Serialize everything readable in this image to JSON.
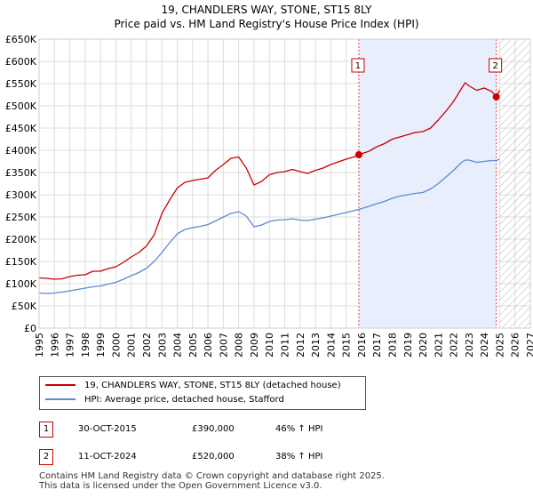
{
  "title_line1": "19, CHANDLERS WAY, STONE, ST15 8LY",
  "title_line2": "Price paid vs. HM Land Registry's House Price Index (HPI)",
  "chart_data": {
    "type": "line",
    "title": "19, CHANDLERS WAY, STONE, ST15 8LY — Price paid vs. HM Land Registry's House Price Index (HPI)",
    "xlim": [
      1995,
      2027
    ],
    "ylim": [
      0,
      650000
    ],
    "x_ticks": [
      "1995",
      "1996",
      "1997",
      "1998",
      "1999",
      "2000",
      "2001",
      "2002",
      "2003",
      "2004",
      "2005",
      "2006",
      "2007",
      "2008",
      "2009",
      "2010",
      "2011",
      "2012",
      "2013",
      "2014",
      "2015",
      "2016",
      "2017",
      "2018",
      "2019",
      "2020",
      "2021",
      "2022",
      "2023",
      "2024",
      "2025",
      "2026",
      "2027"
    ],
    "y_ticks": [
      {
        "value": 0,
        "label": "£0"
      },
      {
        "value": 50000,
        "label": "£50K"
      },
      {
        "value": 100000,
        "label": "£100K"
      },
      {
        "value": 150000,
        "label": "£150K"
      },
      {
        "value": 200000,
        "label": "£200K"
      },
      {
        "value": 250000,
        "label": "£250K"
      },
      {
        "value": 300000,
        "label": "£300K"
      },
      {
        "value": 350000,
        "label": "£350K"
      },
      {
        "value": 400000,
        "label": "£400K"
      },
      {
        "value": 450000,
        "label": "£450K"
      },
      {
        "value": 500000,
        "label": "£500K"
      },
      {
        "value": 550000,
        "label": "£550K"
      },
      {
        "value": 600000,
        "label": "£600K"
      },
      {
        "value": 650000,
        "label": "£650K"
      }
    ],
    "shaded_period": {
      "from": 2015.83,
      "to": 2024.78
    },
    "forecast_hatch_from": 2025.0,
    "series": [
      {
        "name": "19, CHANDLERS WAY, STONE, ST15 8LY (detached house)",
        "color": "#cc0000",
        "points": [
          [
            1995.0,
            113000
          ],
          [
            1995.5,
            112000
          ],
          [
            1996.0,
            110000
          ],
          [
            1996.5,
            111000
          ],
          [
            1997.0,
            116000
          ],
          [
            1997.5,
            119000
          ],
          [
            1998.0,
            120000
          ],
          [
            1998.5,
            128000
          ],
          [
            1999.0,
            128000
          ],
          [
            1999.5,
            134000
          ],
          [
            2000.0,
            138000
          ],
          [
            2000.5,
            148000
          ],
          [
            2001.0,
            160000
          ],
          [
            2001.5,
            170000
          ],
          [
            2002.0,
            185000
          ],
          [
            2002.5,
            210000
          ],
          [
            2003.0,
            258000
          ],
          [
            2003.5,
            288000
          ],
          [
            2004.0,
            315000
          ],
          [
            2004.5,
            328000
          ],
          [
            2005.0,
            332000
          ],
          [
            2005.5,
            335000
          ],
          [
            2006.0,
            338000
          ],
          [
            2006.5,
            355000
          ],
          [
            2007.0,
            368000
          ],
          [
            2007.5,
            382000
          ],
          [
            2008.0,
            385000
          ],
          [
            2008.5,
            360000
          ],
          [
            2009.0,
            322000
          ],
          [
            2009.5,
            330000
          ],
          [
            2010.0,
            345000
          ],
          [
            2010.5,
            350000
          ],
          [
            2011.0,
            352000
          ],
          [
            2011.5,
            357000
          ],
          [
            2012.0,
            352000
          ],
          [
            2012.5,
            348000
          ],
          [
            2013.0,
            355000
          ],
          [
            2013.5,
            360000
          ],
          [
            2014.0,
            368000
          ],
          [
            2014.5,
            374000
          ],
          [
            2015.0,
            380000
          ],
          [
            2015.5,
            385000
          ],
          [
            2015.83,
            390000
          ],
          [
            2016.5,
            398000
          ],
          [
            2017.0,
            408000
          ],
          [
            2017.5,
            415000
          ],
          [
            2018.0,
            425000
          ],
          [
            2018.5,
            430000
          ],
          [
            2019.0,
            435000
          ],
          [
            2019.5,
            440000
          ],
          [
            2020.0,
            442000
          ],
          [
            2020.5,
            450000
          ],
          [
            2021.0,
            468000
          ],
          [
            2021.5,
            488000
          ],
          [
            2022.0,
            510000
          ],
          [
            2022.5,
            538000
          ],
          [
            2022.75,
            552000
          ],
          [
            2023.0,
            545000
          ],
          [
            2023.5,
            535000
          ],
          [
            2024.0,
            540000
          ],
          [
            2024.5,
            532000
          ],
          [
            2024.78,
            520000
          ],
          [
            2025.0,
            535000
          ]
        ]
      },
      {
        "name": "HPI: Average price, detached house, Stafford",
        "color": "#5b8bd0",
        "points": [
          [
            1995.0,
            79000
          ],
          [
            1995.5,
            78000
          ],
          [
            1996.0,
            79000
          ],
          [
            1996.5,
            81000
          ],
          [
            1997.0,
            84000
          ],
          [
            1997.5,
            87000
          ],
          [
            1998.0,
            90000
          ],
          [
            1998.5,
            93000
          ],
          [
            1999.0,
            95000
          ],
          [
            1999.5,
            99000
          ],
          [
            2000.0,
            103000
          ],
          [
            2000.5,
            110000
          ],
          [
            2001.0,
            118000
          ],
          [
            2001.5,
            125000
          ],
          [
            2002.0,
            135000
          ],
          [
            2002.5,
            150000
          ],
          [
            2003.0,
            170000
          ],
          [
            2003.5,
            192000
          ],
          [
            2004.0,
            212000
          ],
          [
            2004.5,
            222000
          ],
          [
            2005.0,
            226000
          ],
          [
            2005.5,
            229000
          ],
          [
            2006.0,
            233000
          ],
          [
            2006.5,
            241000
          ],
          [
            2007.0,
            250000
          ],
          [
            2007.5,
            258000
          ],
          [
            2008.0,
            262000
          ],
          [
            2008.5,
            252000
          ],
          [
            2009.0,
            228000
          ],
          [
            2009.5,
            232000
          ],
          [
            2010.0,
            240000
          ],
          [
            2010.5,
            243000
          ],
          [
            2011.0,
            244000
          ],
          [
            2011.5,
            246000
          ],
          [
            2012.0,
            243000
          ],
          [
            2012.5,
            242000
          ],
          [
            2013.0,
            245000
          ],
          [
            2013.5,
            248000
          ],
          [
            2014.0,
            252000
          ],
          [
            2014.5,
            256000
          ],
          [
            2015.0,
            260000
          ],
          [
            2015.5,
            264000
          ],
          [
            2015.83,
            267000
          ],
          [
            2016.5,
            274000
          ],
          [
            2017.0,
            280000
          ],
          [
            2017.5,
            285000
          ],
          [
            2018.0,
            292000
          ],
          [
            2018.5,
            297000
          ],
          [
            2019.0,
            300000
          ],
          [
            2019.5,
            303000
          ],
          [
            2020.0,
            305000
          ],
          [
            2020.5,
            313000
          ],
          [
            2021.0,
            325000
          ],
          [
            2021.5,
            340000
          ],
          [
            2022.0,
            355000
          ],
          [
            2022.5,
            372000
          ],
          [
            2022.75,
            378000
          ],
          [
            2023.0,
            378000
          ],
          [
            2023.5,
            373000
          ],
          [
            2024.0,
            375000
          ],
          [
            2024.5,
            377000
          ],
          [
            2024.78,
            377000
          ],
          [
            2025.0,
            380000
          ]
        ]
      }
    ],
    "sales": [
      {
        "label": "1",
        "x": 2015.83,
        "y": 390000
      },
      {
        "label": "2",
        "x": 2024.78,
        "y": 520000
      }
    ]
  },
  "legend": {
    "items": [
      {
        "label": "19, CHANDLERS WAY, STONE, ST15 8LY (detached house)",
        "color": "#cc0000"
      },
      {
        "label": "HPI: Average price, detached house, Stafford",
        "color": "#5b8bd0"
      }
    ]
  },
  "transactions": [
    {
      "badge": "1",
      "date": "30-OCT-2015",
      "price": "£390,000",
      "hpi": "46% ↑ HPI"
    },
    {
      "badge": "2",
      "date": "11-OCT-2024",
      "price": "£520,000",
      "hpi": "38% ↑ HPI"
    }
  ],
  "footer": {
    "line1": "Contains HM Land Registry data © Crown copyright and database right 2025.",
    "line2": "This data is licensed under the Open Government Licence v3.0."
  }
}
